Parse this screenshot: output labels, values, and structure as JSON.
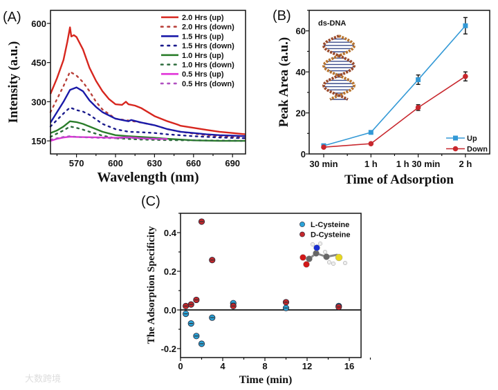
{
  "chart_data": [
    {
      "panel": "(A)",
      "type": "line",
      "xlabel": "Wavelength (nm)",
      "ylabel": "Intensity (a.u.)",
      "xlim": [
        550,
        700
      ],
      "ylim": [
        100,
        650
      ],
      "xticks": [
        570,
        600,
        630,
        660,
        690
      ],
      "yticks": [
        150,
        300,
        450,
        600
      ],
      "legend_position": "top-right",
      "series": [
        {
          "name": "2.0 Hrs (up)",
          "color": "#d7261e",
          "style": "solid",
          "x": [
            550,
            555,
            560,
            563,
            565,
            566,
            568,
            570,
            575,
            580,
            585,
            590,
            595,
            600,
            605,
            608,
            610,
            615,
            620,
            630,
            640,
            648,
            650,
            660,
            670,
            680,
            690,
            700
          ],
          "y": [
            330,
            390,
            460,
            530,
            585,
            550,
            555,
            548,
            500,
            430,
            380,
            340,
            310,
            290,
            288,
            300,
            290,
            285,
            275,
            245,
            225,
            212,
            208,
            200,
            192,
            185,
            180,
            175
          ]
        },
        {
          "name": "2.0 Hrs (down)",
          "color": "#b8403a",
          "style": "dotted",
          "x": [
            550,
            555,
            560,
            565,
            570,
            575,
            580,
            585,
            590,
            600,
            610,
            620,
            630,
            640,
            650,
            660,
            670,
            680,
            690,
            700
          ],
          "y": [
            260,
            310,
            360,
            415,
            400,
            375,
            340,
            300,
            270,
            235,
            228,
            220,
            210,
            195,
            185,
            178,
            172,
            168,
            165,
            160
          ]
        },
        {
          "name": "1.5 Hrs (up)",
          "color": "#1a1aa8",
          "style": "solid",
          "x": [
            550,
            555,
            560,
            565,
            570,
            575,
            580,
            585,
            590,
            600,
            610,
            612,
            620,
            630,
            640,
            650,
            660,
            670,
            680,
            690,
            700
          ],
          "y": [
            220,
            260,
            300,
            345,
            355,
            340,
            305,
            280,
            260,
            235,
            225,
            230,
            220,
            210,
            195,
            185,
            180,
            175,
            172,
            170,
            168
          ]
        },
        {
          "name": "1.5 Hrs (down)",
          "color": "#1a1a8c",
          "style": "dotted",
          "x": [
            550,
            555,
            560,
            565,
            570,
            575,
            580,
            590,
            600,
            610,
            620,
            630,
            640,
            660,
            680,
            700
          ],
          "y": [
            205,
            230,
            255,
            278,
            268,
            262,
            250,
            215,
            195,
            185,
            183,
            180,
            175,
            168,
            163,
            160
          ]
        },
        {
          "name": "1.0 Hrs (up)",
          "color": "#2a7d2a",
          "style": "solid",
          "x": [
            550,
            555,
            560,
            565,
            570,
            575,
            580,
            590,
            600,
            610,
            620,
            630,
            640,
            650,
            660,
            680,
            700
          ],
          "y": [
            180,
            190,
            205,
            225,
            222,
            215,
            205,
            185,
            172,
            168,
            165,
            162,
            158,
            155,
            152,
            150,
            150
          ]
        },
        {
          "name": "1.0 Hrs (down)",
          "color": "#2a6a3a",
          "style": "dotted",
          "x": [
            550,
            555,
            560,
            565,
            570,
            575,
            580,
            590,
            600,
            620,
            640,
            660,
            680,
            700
          ],
          "y": [
            165,
            178,
            190,
            205,
            200,
            193,
            185,
            170,
            160,
            155,
            153,
            152,
            151,
            150
          ]
        },
        {
          "name": "0.5 Hrs (up)",
          "color": "#e030d8",
          "style": "solid",
          "x": [
            550,
            555,
            560,
            565,
            570,
            580,
            590,
            600,
            610,
            620,
            630,
            640
          ],
          "y": [
            150,
            158,
            163,
            166,
            165,
            164,
            163,
            162,
            164,
            160,
            158,
            157
          ]
        },
        {
          "name": "0.5 Hrs (down)",
          "color": "#b050c0",
          "style": "dotted",
          "x": [
            550,
            555,
            560,
            565,
            570,
            580,
            590,
            600,
            610,
            620,
            630,
            640
          ],
          "y": [
            155,
            160,
            165,
            168,
            165,
            163,
            161,
            160,
            162,
            159,
            158,
            158
          ]
        }
      ]
    },
    {
      "panel": "(B)",
      "type": "line",
      "annotation": "ds-DNA",
      "xlabel": "Time of Adsorption",
      "ylabel": "Peak Area (a.u.)",
      "categories": [
        "30 min",
        "1 h",
        "1 h 30 min",
        "2 h"
      ],
      "ylim": [
        0,
        70
      ],
      "yticks": [
        0,
        20,
        40,
        60
      ],
      "legend_position": "bottom-right",
      "series": [
        {
          "name": "Up",
          "color": "#3399d6",
          "marker": "square",
          "values": [
            4,
            10.5,
            36.2,
            62.5
          ],
          "errors": [
            0.8,
            0.8,
            2.3,
            4.0
          ]
        },
        {
          "name": "Down",
          "color": "#c8272d",
          "marker": "circle",
          "values": [
            3.3,
            5.0,
            22.6,
            37.8
          ],
          "errors": [
            0.5,
            0.6,
            1.4,
            2.2
          ]
        }
      ]
    },
    {
      "panel": "(C)",
      "type": "scatter",
      "xlabel": "Time (min)",
      "ylabel": "The Adsorption Specificity",
      "xlim": [
        0,
        17
      ],
      "ylim": [
        -0.25,
        0.5
      ],
      "xticks": [
        0,
        4,
        8,
        12,
        16
      ],
      "yticks": [
        -0.2,
        0.0,
        0.2,
        0.4
      ],
      "ytick_labels": [
        "-0.2",
        "0.0",
        "0.2",
        "0.4"
      ],
      "legend_position": "top-right",
      "series": [
        {
          "name": "L-Cysteine",
          "color": "#2ba3d8",
          "x": [
            0.5,
            1,
            1.5,
            2,
            3,
            5,
            10,
            15
          ],
          "y": [
            -0.02,
            -0.07,
            -0.135,
            -0.175,
            -0.04,
            0.035,
            0.01,
            0.02
          ]
        },
        {
          "name": "D-Cysteine",
          "color": "#c4282c",
          "x": [
            0.5,
            1,
            1.5,
            2,
            3,
            5,
            10,
            15
          ],
          "y": [
            0.02,
            0.028,
            0.052,
            0.457,
            0.258,
            0.02,
            0.04,
            0.015
          ]
        }
      ]
    }
  ],
  "watermark": "大数跨境"
}
